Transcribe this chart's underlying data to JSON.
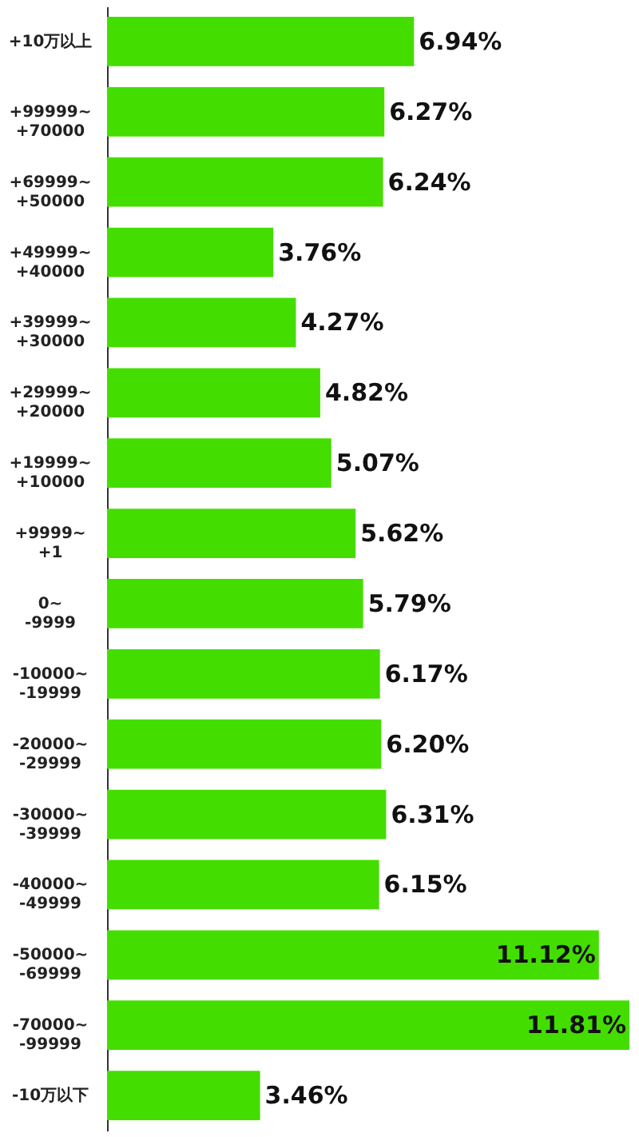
{
  "chart_data": {
    "type": "bar",
    "orientation": "horizontal",
    "categories": [
      "+10万以上",
      "+99999~+70000",
      "+69999~+50000",
      "+49999~+40000",
      "+39999~+30000",
      "+29999~+20000",
      "+19999~+10000",
      "+9999~+1",
      "0~-9999",
      "-10000~-19999",
      "-20000~-29999",
      "-30000~-39999",
      "-40000~-49999",
      "-50000~-69999",
      "-70000~-99999",
      "-10万以下"
    ],
    "values": [
      6.94,
      6.27,
      6.24,
      3.76,
      4.27,
      4.82,
      5.07,
      5.62,
      5.79,
      6.17,
      6.2,
      6.31,
      6.15,
      11.12,
      11.81,
      3.46
    ],
    "value_labels": [
      "6.94%",
      "6.27%",
      "6.24%",
      "3.76%",
      "4.27%",
      "4.82%",
      "5.07%",
      "5.62%",
      "5.79%",
      "6.17%",
      "6.20%",
      "6.31%",
      "6.15%",
      "11.12%",
      "11.81%",
      "3.46%"
    ],
    "color": "#44dd00"
  }
}
